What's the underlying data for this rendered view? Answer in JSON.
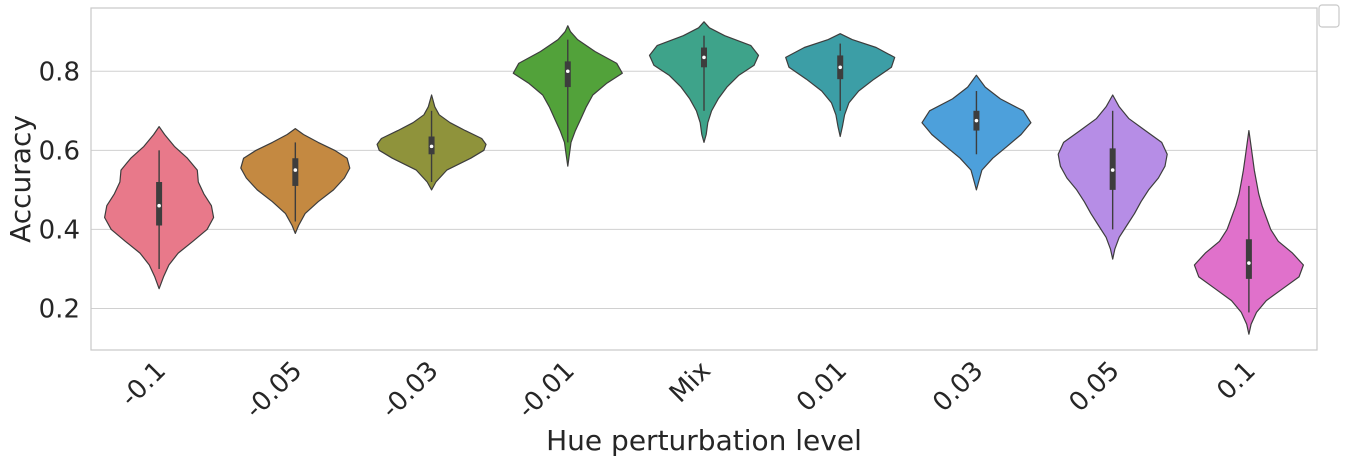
{
  "chart_data": {
    "type": "violin",
    "xlabel": "Hue perturbation level",
    "ylabel": "Accuracy",
    "ylim": [
      0.095,
      0.96
    ],
    "yticks": [
      0.2,
      0.4,
      0.6,
      0.8
    ],
    "ytick_labels": [
      "0.2",
      "0.4",
      "0.6",
      "0.8"
    ],
    "grid": "horizontal",
    "legend": "top-right (empty)",
    "categories": [
      "-0.1",
      "-0.05",
      "-0.03",
      "-0.01",
      "Mix",
      "0.01",
      "0.03",
      "0.05",
      "0.1"
    ],
    "colors": [
      "#e8798a",
      "#c48941",
      "#8f933b",
      "#52a23a",
      "#3ea38a",
      "#3c9ea6",
      "#4da0db",
      "#b68de6",
      "#e071cb"
    ],
    "series": [
      {
        "category": "-0.1",
        "min": 0.25,
        "max": 0.66,
        "whisker_low": 0.3,
        "whisker_high": 0.6,
        "q1": 0.41,
        "median": 0.46,
        "q3": 0.52,
        "profile": [
          [
            0.25,
            0.0
          ],
          [
            0.28,
            0.08
          ],
          [
            0.31,
            0.18
          ],
          [
            0.34,
            0.35
          ],
          [
            0.37,
            0.62
          ],
          [
            0.4,
            0.88
          ],
          [
            0.43,
            1.0
          ],
          [
            0.46,
            0.96
          ],
          [
            0.49,
            0.82
          ],
          [
            0.52,
            0.72
          ],
          [
            0.55,
            0.7
          ],
          [
            0.58,
            0.52
          ],
          [
            0.61,
            0.28
          ],
          [
            0.64,
            0.1
          ],
          [
            0.66,
            0.0
          ]
        ]
      },
      {
        "category": "-0.05",
        "min": 0.39,
        "max": 0.655,
        "whisker_low": 0.42,
        "whisker_high": 0.62,
        "q1": 0.51,
        "median": 0.55,
        "q3": 0.58,
        "profile": [
          [
            0.39,
            0.0
          ],
          [
            0.41,
            0.06
          ],
          [
            0.44,
            0.18
          ],
          [
            0.47,
            0.42
          ],
          [
            0.5,
            0.7
          ],
          [
            0.53,
            0.9
          ],
          [
            0.555,
            1.0
          ],
          [
            0.58,
            0.95
          ],
          [
            0.6,
            0.72
          ],
          [
            0.62,
            0.42
          ],
          [
            0.64,
            0.15
          ],
          [
            0.655,
            0.0
          ]
        ]
      },
      {
        "category": "-0.03",
        "min": 0.5,
        "max": 0.74,
        "whisker_low": 0.52,
        "whisker_high": 0.7,
        "q1": 0.59,
        "median": 0.61,
        "q3": 0.635,
        "profile": [
          [
            0.5,
            0.0
          ],
          [
            0.52,
            0.08
          ],
          [
            0.55,
            0.28
          ],
          [
            0.58,
            0.72
          ],
          [
            0.6,
            0.96
          ],
          [
            0.615,
            1.0
          ],
          [
            0.63,
            0.92
          ],
          [
            0.65,
            0.62
          ],
          [
            0.67,
            0.34
          ],
          [
            0.69,
            0.14
          ],
          [
            0.71,
            0.06
          ],
          [
            0.74,
            0.0
          ]
        ]
      },
      {
        "category": "-0.01",
        "min": 0.56,
        "max": 0.915,
        "whisker_low": 0.62,
        "whisker_high": 0.88,
        "q1": 0.76,
        "median": 0.8,
        "q3": 0.825,
        "profile": [
          [
            0.56,
            0.0
          ],
          [
            0.59,
            0.03
          ],
          [
            0.62,
            0.06
          ],
          [
            0.65,
            0.14
          ],
          [
            0.68,
            0.24
          ],
          [
            0.71,
            0.34
          ],
          [
            0.74,
            0.46
          ],
          [
            0.77,
            0.72
          ],
          [
            0.795,
            1.0
          ],
          [
            0.82,
            0.9
          ],
          [
            0.85,
            0.5
          ],
          [
            0.88,
            0.18
          ],
          [
            0.9,
            0.05
          ],
          [
            0.915,
            0.0
          ]
        ]
      },
      {
        "category": "Mix",
        "min": 0.62,
        "max": 0.925,
        "whisker_low": 0.7,
        "whisker_high": 0.89,
        "q1": 0.81,
        "median": 0.835,
        "q3": 0.86,
        "profile": [
          [
            0.62,
            0.0
          ],
          [
            0.64,
            0.04
          ],
          [
            0.67,
            0.07
          ],
          [
            0.7,
            0.14
          ],
          [
            0.73,
            0.26
          ],
          [
            0.76,
            0.42
          ],
          [
            0.79,
            0.64
          ],
          [
            0.815,
            0.92
          ],
          [
            0.84,
            1.0
          ],
          [
            0.865,
            0.86
          ],
          [
            0.89,
            0.38
          ],
          [
            0.91,
            0.1
          ],
          [
            0.925,
            0.0
          ]
        ]
      },
      {
        "category": "0.01",
        "min": 0.635,
        "max": 0.895,
        "whisker_low": 0.7,
        "whisker_high": 0.87,
        "q1": 0.78,
        "median": 0.81,
        "q3": 0.84,
        "profile": [
          [
            0.635,
            0.0
          ],
          [
            0.66,
            0.04
          ],
          [
            0.69,
            0.08
          ],
          [
            0.72,
            0.16
          ],
          [
            0.75,
            0.34
          ],
          [
            0.78,
            0.62
          ],
          [
            0.81,
            0.94
          ],
          [
            0.835,
            1.0
          ],
          [
            0.86,
            0.66
          ],
          [
            0.88,
            0.22
          ],
          [
            0.895,
            0.0
          ]
        ]
      },
      {
        "category": "0.03",
        "min": 0.5,
        "max": 0.79,
        "whisker_low": 0.59,
        "whisker_high": 0.75,
        "q1": 0.65,
        "median": 0.675,
        "q3": 0.7,
        "profile": [
          [
            0.5,
            0.0
          ],
          [
            0.52,
            0.04
          ],
          [
            0.55,
            0.1
          ],
          [
            0.58,
            0.3
          ],
          [
            0.61,
            0.56
          ],
          [
            0.64,
            0.82
          ],
          [
            0.67,
            1.0
          ],
          [
            0.7,
            0.86
          ],
          [
            0.73,
            0.44
          ],
          [
            0.76,
            0.16
          ],
          [
            0.79,
            0.0
          ]
        ]
      },
      {
        "category": "0.05",
        "min": 0.325,
        "max": 0.74,
        "whisker_low": 0.4,
        "whisker_high": 0.7,
        "q1": 0.5,
        "median": 0.55,
        "q3": 0.605,
        "profile": [
          [
            0.325,
            0.0
          ],
          [
            0.35,
            0.04
          ],
          [
            0.38,
            0.12
          ],
          [
            0.41,
            0.26
          ],
          [
            0.44,
            0.4
          ],
          [
            0.47,
            0.52
          ],
          [
            0.5,
            0.66
          ],
          [
            0.53,
            0.84
          ],
          [
            0.56,
            0.96
          ],
          [
            0.59,
            1.0
          ],
          [
            0.62,
            0.9
          ],
          [
            0.65,
            0.6
          ],
          [
            0.68,
            0.3
          ],
          [
            0.71,
            0.12
          ],
          [
            0.74,
            0.0
          ]
        ]
      },
      {
        "category": "0.1",
        "min": 0.135,
        "max": 0.65,
        "whisker_low": 0.19,
        "whisker_high": 0.51,
        "q1": 0.275,
        "median": 0.315,
        "q3": 0.375,
        "profile": [
          [
            0.135,
            0.0
          ],
          [
            0.16,
            0.04
          ],
          [
            0.19,
            0.14
          ],
          [
            0.22,
            0.32
          ],
          [
            0.25,
            0.62
          ],
          [
            0.28,
            0.92
          ],
          [
            0.31,
            1.0
          ],
          [
            0.34,
            0.8
          ],
          [
            0.37,
            0.54
          ],
          [
            0.4,
            0.4
          ],
          [
            0.43,
            0.32
          ],
          [
            0.46,
            0.24
          ],
          [
            0.49,
            0.18
          ],
          [
            0.52,
            0.14
          ],
          [
            0.55,
            0.1
          ],
          [
            0.58,
            0.07
          ],
          [
            0.61,
            0.04
          ],
          [
            0.65,
            0.0
          ]
        ]
      }
    ]
  }
}
